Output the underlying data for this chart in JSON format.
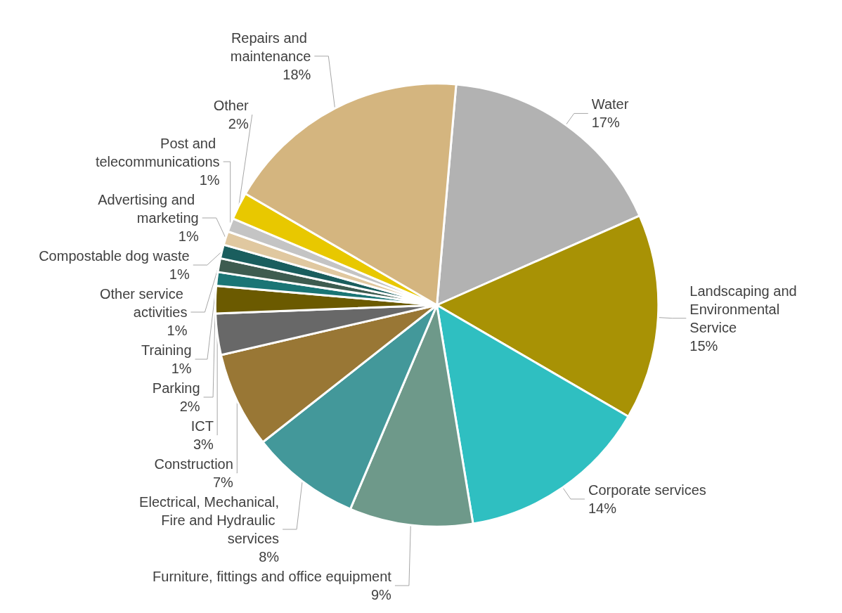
{
  "chart_data": {
    "type": "pie",
    "categories": [
      "Water",
      "Landscaping and Environmental Service",
      "Corporate services",
      "Furniture, fittings and office equipment",
      "Electrical, Mechanical, Fire and Hydraulic services",
      "Construction",
      "ICT",
      "Parking",
      "Training",
      "Other service activities",
      "Compostable dog waste",
      "Advertising and marketing",
      "Post and telecommunications",
      "Other",
      "Repairs and maintenance"
    ],
    "values": [
      17,
      15,
      14,
      9,
      8,
      7,
      3,
      2,
      1,
      1,
      1,
      1,
      1,
      2,
      18
    ],
    "colors": [
      "#b2b2b2",
      "#a89205",
      "#2fbfc1",
      "#6e998a",
      "#43989a",
      "#997735",
      "#686868",
      "#6b5a00",
      "#1a7575",
      "#3e5c50",
      "#1a5e5e",
      "#e0c8a0",
      "#c4c4c4",
      "#e8c800",
      "#d4b57f"
    ],
    "value_labels": [
      "17%",
      "15%",
      "14%",
      "9%",
      "8%",
      "7%",
      "3%",
      "2%",
      "1%",
      "1%",
      "1%",
      "1%",
      "1%",
      "2%",
      "18%"
    ]
  }
}
